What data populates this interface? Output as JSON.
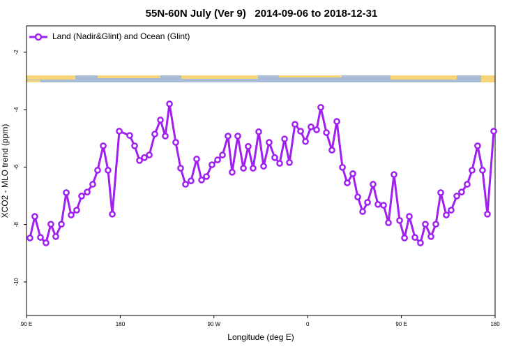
{
  "chart_data": {
    "type": "line",
    "title": "55N-60N July (Ver 9)   2014-09-06 to 2018-12-31",
    "x_label": "Longitude (deg E)",
    "y_label": "XCO2 - MLO trend (ppm)",
    "legend": "top-left",
    "grid": false,
    "xlim": [
      90,
      540
    ],
    "xticks": [
      {
        "value": 90,
        "label": "90 E"
      },
      180,
      {
        "value": 270,
        "label": "90 W"
      },
      {
        "value": 360,
        "label": "0"
      },
      {
        "value": 450,
        "label": "90 E"
      },
      {
        "value": 540,
        "label": "180"
      }
    ],
    "ylim": [
      -11.17,
      -1.08
    ],
    "yticks": [
      -2,
      -4,
      -6,
      -8,
      -10
    ],
    "x": [
      93.3,
      98.0,
      103.4,
      108.7,
      113.4,
      118.1,
      123.5,
      128.2,
      132.9,
      138.2,
      142.9,
      148.3,
      153.6,
      158.3,
      163.7,
      168.3,
      172.4,
      179.1,
      189.1,
      193.8,
      198.5,
      203.2,
      207.9,
      213.2,
      218.6,
      223.3,
      227.3,
      233.3,
      238.0,
      242.7,
      248.0,
      253.4,
      258.1,
      262.8,
      268.1,
      273.5,
      278.2,
      283.5,
      287.5,
      292.9,
      298.3,
      302.9,
      307.6,
      313.0,
      317.7,
      323.0,
      328.4,
      333.1,
      337.8,
      342.5,
      347.8,
      353.2,
      357.9,
      363.2,
      368.6,
      372.6,
      378.0,
      383.3,
      388.0,
      393.4,
      398.0,
      403.4,
      408.1,
      412.8,
      417.5,
      422.8,
      427.5,
      432.9,
      437.6,
      442.9,
      448.3,
      453.0,
      457.6,
      463.0,
      468.3,
      473.0,
      478.4,
      483.1,
      487.8,
      493.1,
      497.8,
      503.2,
      507.8,
      513.2,
      517.9,
      523.2,
      527.9,
      532.6,
      538.7
    ],
    "series": [
      {
        "name": "Land (Nadir&Glint) and Ocean (Glint)",
        "color": "#a020f0",
        "values": [
          -8.47,
          -7.72,
          -8.45,
          -8.64,
          -7.99,
          -8.42,
          -7.99,
          -6.89,
          -7.67,
          -7.5,
          -7.01,
          -6.87,
          -6.6,
          -6.11,
          -5.26,
          -6.11,
          -7.64,
          -4.75,
          -4.9,
          -5.26,
          -5.77,
          -5.67,
          -5.58,
          -4.85,
          -4.36,
          -4.92,
          -3.8,
          -5.14,
          -6.04,
          -6.6,
          -6.48,
          -5.72,
          -6.45,
          -6.33,
          -5.92,
          -5.75,
          -5.58,
          -4.92,
          -6.18,
          -4.92,
          -6.04,
          -5.28,
          -6.04,
          -4.77,
          -5.97,
          -5.14,
          -5.67,
          -5.87,
          -5.02,
          -5.84,
          -4.51,
          -4.75,
          -5.11,
          -4.6,
          -4.7,
          -3.92,
          -4.8,
          -5.41,
          -4.41,
          -6.01,
          -6.55,
          -6.23,
          -7.04,
          -7.55,
          -7.23,
          -6.6,
          -7.3,
          -7.33,
          -7.94,
          -6.26,
          -7.86,
          -8.47,
          -7.72,
          -8.45,
          -8.64,
          -7.99,
          -8.42,
          -7.99,
          -6.89,
          -7.67,
          -7.5,
          -7.01,
          -6.87,
          -6.6,
          -6.11,
          -5.26,
          -6.11,
          -7.64,
          -4.75
        ]
      }
    ]
  }
}
